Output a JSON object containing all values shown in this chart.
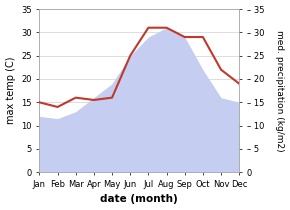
{
  "months": [
    "Jan",
    "Feb",
    "Mar",
    "Apr",
    "May",
    "Jun",
    "Jul",
    "Aug",
    "Sep",
    "Oct",
    "Nov",
    "Dec"
  ],
  "max_temp": [
    12,
    11.5,
    13,
    16,
    19,
    25,
    29,
    31,
    29,
    22,
    16,
    15
  ],
  "precipitation": [
    15,
    14,
    16,
    15.5,
    16,
    25,
    31,
    31,
    29,
    29,
    22,
    19
  ],
  "temp_fill_color": "#c5cef0",
  "precip_color": "#c0392b",
  "xlabel": "date (month)",
  "ylabel_left": "max temp (C)",
  "ylabel_right": "med. precipitation (kg/m2)",
  "ylim_left": [
    0,
    35
  ],
  "ylim_right": [
    0,
    35
  ],
  "yticks_left": [
    0,
    5,
    10,
    15,
    20,
    25,
    30,
    35
  ],
  "yticks_right": [
    0,
    5,
    10,
    15,
    20,
    25,
    30,
    35
  ],
  "background_color": "#ffffff",
  "grid_color": "#d0d0d0"
}
